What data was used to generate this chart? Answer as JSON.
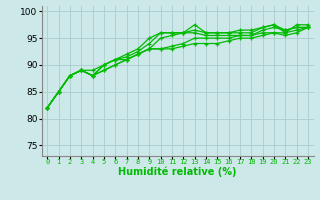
{
  "xlabel": "Humidité relative (%)",
  "ylabel": "",
  "bg_color": "#cce8e8",
  "grid_color": "#aacccc",
  "line_color": "#00bb00",
  "xlim": [
    -0.5,
    23.5
  ],
  "ylim": [
    73,
    101
  ],
  "yticks": [
    75,
    80,
    85,
    90,
    95,
    100
  ],
  "xtick_labels": [
    "0",
    "1",
    "2",
    "3",
    "4",
    "5",
    "6",
    "7",
    "8",
    "9",
    "10",
    "11",
    "12",
    "13",
    "14",
    "15",
    "16",
    "17",
    "18",
    "19",
    "20",
    "21",
    "22",
    "23"
  ],
  "series": [
    [
      82,
      85,
      88,
      89,
      89,
      90,
      91,
      92,
      93,
      95,
      96,
      96,
      96,
      97.5,
      96,
      96,
      96,
      96,
      96,
      97,
      97.5,
      96,
      97.5,
      97.5
    ],
    [
      82,
      85,
      88,
      89,
      88,
      90,
      91,
      91.5,
      92.5,
      94,
      96,
      96,
      96,
      96.5,
      96,
      96,
      96,
      96.5,
      96.5,
      97,
      97.5,
      96.5,
      97,
      97
    ],
    [
      82,
      85,
      88,
      89,
      88,
      90,
      91,
      91,
      92,
      93,
      95,
      95.5,
      96,
      96,
      95.5,
      95.5,
      95.5,
      95.5,
      95.5,
      96.5,
      97,
      96.5,
      97,
      97
    ],
    [
      82,
      85,
      88,
      89,
      88,
      89,
      90,
      91,
      92,
      93,
      93,
      93.5,
      94,
      95,
      95,
      95,
      95,
      95.5,
      95.5,
      96,
      96,
      96,
      96.5,
      97
    ],
    [
      82,
      85,
      88,
      89,
      88,
      89,
      90,
      91,
      92,
      93,
      93,
      93,
      93.5,
      94,
      94,
      94,
      94.5,
      95,
      95,
      95.5,
      96,
      95.5,
      96,
      97
    ]
  ]
}
